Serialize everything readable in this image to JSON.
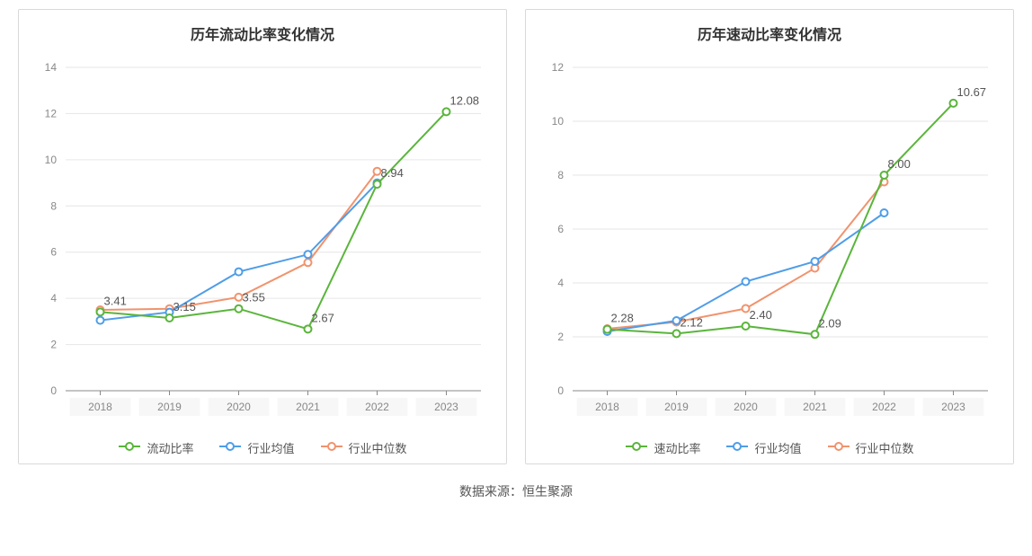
{
  "data_source_prefix": "数据来源：",
  "data_source_name": "恒生聚源",
  "layout": {
    "panel_border_color": "#d9d9d9",
    "background_color": "#ffffff"
  },
  "charts": [
    {
      "id": "current-ratio",
      "title": "历年流动比率变化情况",
      "title_fontsize": 16,
      "title_color": "#333333",
      "y_axis": {
        "min": 0,
        "max": 14,
        "tick_step": 2,
        "label_color": "#888888",
        "axis_color": "#888888",
        "split_line_color": "#e6e6e6"
      },
      "x_axis": {
        "categories": [
          "2018",
          "2019",
          "2020",
          "2021",
          "2022",
          "2023"
        ],
        "label_color": "#888888",
        "axis_color": "#888888",
        "tick_color": "#888888",
        "label_bg": "#f7f7f7"
      },
      "series": [
        {
          "name": "流动比率",
          "color": "#5ab53b",
          "values": [
            3.41,
            3.15,
            3.55,
            2.67,
            8.94,
            12.08
          ],
          "show_labels": true,
          "label_color": "#555555",
          "label_fontsize": 13,
          "marker": "hollow-circle",
          "marker_size": 4,
          "line_width": 2
        },
        {
          "name": "行业均值",
          "color": "#4f9de8",
          "values": [
            3.05,
            3.4,
            5.15,
            5.9,
            9.0,
            null
          ],
          "show_labels": false,
          "marker": "hollow-circle",
          "marker_size": 4,
          "line_width": 2
        },
        {
          "name": "行业中位数",
          "color": "#f1936d",
          "values": [
            3.5,
            3.55,
            4.05,
            5.55,
            9.5,
            null
          ],
          "show_labels": false,
          "marker": "hollow-circle",
          "marker_size": 4,
          "line_width": 2
        }
      ]
    },
    {
      "id": "quick-ratio",
      "title": "历年速动比率变化情况",
      "title_fontsize": 16,
      "title_color": "#333333",
      "y_axis": {
        "min": 0,
        "max": 12,
        "tick_step": 2,
        "label_color": "#888888",
        "axis_color": "#888888",
        "split_line_color": "#e6e6e6"
      },
      "x_axis": {
        "categories": [
          "2018",
          "2019",
          "2020",
          "2021",
          "2022",
          "2023"
        ],
        "label_color": "#888888",
        "axis_color": "#888888",
        "tick_color": "#888888",
        "label_bg": "#f7f7f7"
      },
      "series": [
        {
          "name": "速动比率",
          "color": "#5ab53b",
          "values": [
            2.28,
            2.12,
            2.4,
            2.09,
            8.0,
            10.67
          ],
          "show_labels": true,
          "label_color": "#555555",
          "label_fontsize": 13,
          "marker": "hollow-circle",
          "marker_size": 4,
          "line_width": 2
        },
        {
          "name": "行业均值",
          "color": "#4f9de8",
          "values": [
            2.2,
            2.6,
            4.05,
            4.8,
            6.6,
            null
          ],
          "show_labels": false,
          "marker": "hollow-circle",
          "marker_size": 4,
          "line_width": 2
        },
        {
          "name": "行业中位数",
          "color": "#f1936d",
          "values": [
            2.3,
            2.55,
            3.05,
            4.55,
            7.75,
            null
          ],
          "show_labels": false,
          "marker": "hollow-circle",
          "marker_size": 4,
          "line_width": 2
        }
      ]
    }
  ]
}
